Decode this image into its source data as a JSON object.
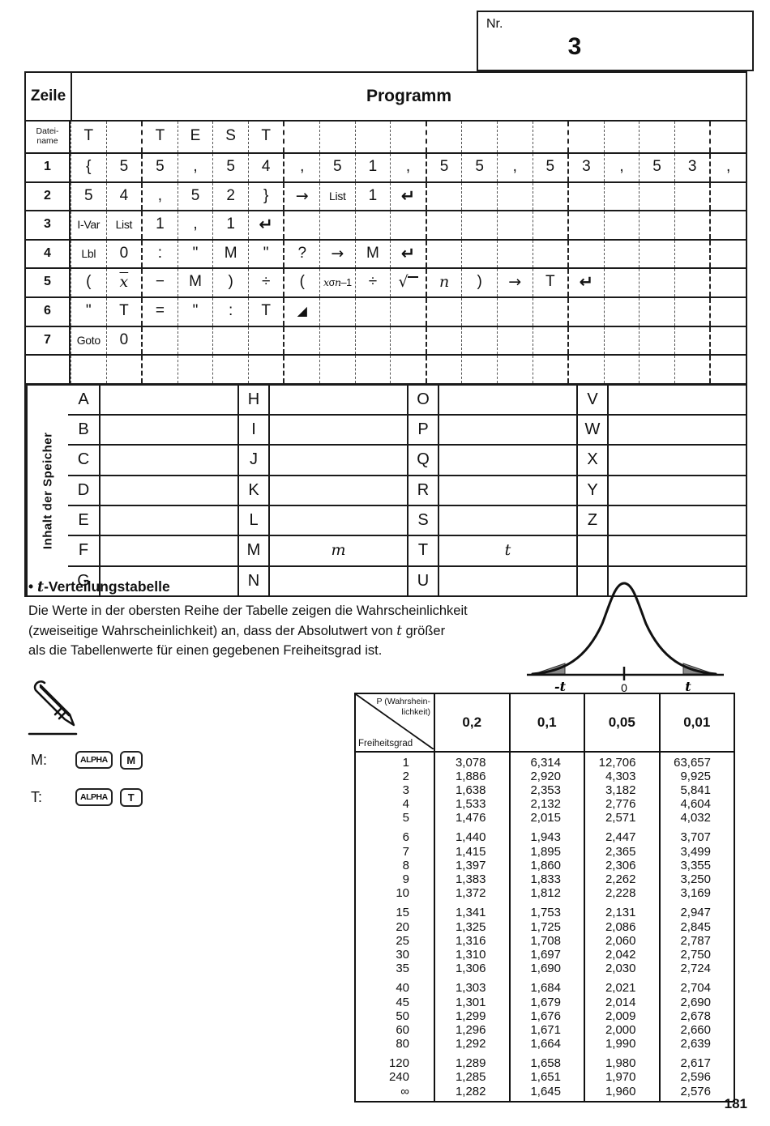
{
  "nr_box": {
    "label": "Nr.",
    "value": "3"
  },
  "program_table": {
    "zeile_header": "Zeile",
    "programm_header": "Programm",
    "dateiname_label_line1": "Datei-",
    "dateiname_label_line2": "name",
    "dateiname_cells": [
      "T",
      "",
      "T",
      "E",
      "S",
      "T",
      "",
      "",
      "",
      "",
      "",
      "",
      "",
      "",
      "",
      "",
      "",
      "",
      ""
    ],
    "rows": [
      {
        "num": "1",
        "cells": [
          "{",
          "5",
          "5",
          ",",
          "5",
          "4",
          ",",
          "5",
          "1",
          ",",
          "5",
          "5",
          ",",
          "5",
          "3",
          ",",
          "5",
          "3",
          ","
        ]
      },
      {
        "num": "2",
        "cells": [
          "5",
          "4",
          ",",
          "5",
          "2",
          "}",
          "{ARROW}",
          "List",
          "1",
          "{RET}",
          "",
          "",
          "",
          "",
          "",
          "",
          "",
          "",
          ""
        ]
      },
      {
        "num": "3",
        "cells": [
          "I-Var",
          "List",
          "1",
          ",",
          "1",
          "{RET}",
          "",
          "",
          "",
          "",
          "",
          "",
          "",
          "",
          "",
          "",
          "",
          "",
          ""
        ]
      },
      {
        "num": "4",
        "cells": [
          "Lbl",
          "0",
          ":",
          "\"",
          "M",
          "\"",
          "?",
          "{ARROW}",
          "M",
          "{RET}",
          "",
          "",
          "",
          "",
          "",
          "",
          "",
          "",
          ""
        ]
      },
      {
        "num": "5",
        "cells": [
          "(",
          "{XBAR}",
          "−",
          "M",
          ")",
          "÷",
          "(",
          "{XSN1}",
          "÷",
          "{SQRT}",
          "{N}",
          ")",
          "{ARROW}",
          "T",
          "{RET}",
          "",
          "",
          "",
          ""
        ]
      },
      {
        "num": "6",
        "cells": [
          "\"",
          "T",
          "=",
          "\"",
          ":",
          "T",
          "{DISP}",
          "",
          "",
          "",
          "",
          "",
          "",
          "",
          "",
          "",
          "",
          "",
          ""
        ]
      },
      {
        "num": "7",
        "cells": [
          "Goto",
          "0",
          "",
          "",
          "",
          "",
          "",
          "",
          "",
          "",
          "",
          "",
          "",
          "",
          "",
          "",
          "",
          "",
          ""
        ]
      },
      {
        "num": "",
        "cells": [
          "",
          "",
          "",
          "",
          "",
          "",
          "",
          "",
          "",
          "",
          "",
          "",
          "",
          "",
          "",
          "",
          "",
          "",
          ""
        ]
      }
    ]
  },
  "memory_table": {
    "side_label": "Inhalt der Speicher",
    "groups": [
      {
        "rows": [
          [
            "A",
            ""
          ],
          [
            "B",
            ""
          ],
          [
            "C",
            ""
          ],
          [
            "D",
            ""
          ],
          [
            "E",
            ""
          ],
          [
            "F",
            ""
          ],
          [
            "G",
            ""
          ]
        ]
      },
      {
        "rows": [
          [
            "H",
            ""
          ],
          [
            "I",
            ""
          ],
          [
            "J",
            ""
          ],
          [
            "K",
            ""
          ],
          [
            "L",
            ""
          ],
          [
            "M",
            "{MI}"
          ],
          [
            "N",
            ""
          ]
        ]
      },
      {
        "rows": [
          [
            "O",
            ""
          ],
          [
            "P",
            ""
          ],
          [
            "Q",
            ""
          ],
          [
            "R",
            ""
          ],
          [
            "S",
            ""
          ],
          [
            "T",
            "{TI}"
          ],
          [
            "U",
            ""
          ]
        ]
      },
      {
        "rows": [
          [
            "V",
            ""
          ],
          [
            "W",
            ""
          ],
          [
            "X",
            ""
          ],
          [
            "Y",
            ""
          ],
          [
            "Z",
            ""
          ],
          [
            "",
            ""
          ],
          [
            "",
            ""
          ]
        ]
      }
    ]
  },
  "t_section": {
    "bullet": "•",
    "title_t": "t",
    "title_rest": "-Verteilungstabelle",
    "paragraph_lines": [
      "Die Werte in der obersten Reihe der Tabelle zeigen die Wahrscheinlichkeit",
      "(zweiseitige Wahrscheinlichkeit) an, dass der Absolutwert von {t} größer",
      "als die Tabellenwerte für einen gegebenen Freiheitsgrad ist."
    ],
    "curve_labels": {
      "neg": "-t",
      "zero": "0",
      "pos": "t"
    }
  },
  "key_assignments": [
    {
      "label": "M:",
      "keys": [
        "ALPHA",
        "M"
      ]
    },
    {
      "label": "T:",
      "keys": [
        "ALPHA",
        "T"
      ]
    }
  ],
  "dist_table": {
    "header": {
      "diag_line1": "P (Wahrshein-",
      "diag_line2": "lichkeit)",
      "diag_bottom": "Freiheitsgrad",
      "columns": [
        "0,2",
        "0,1",
        "0,05",
        "0,01"
      ]
    },
    "groups": [
      [
        [
          "1",
          "3,078",
          "6,314",
          "12,706",
          "63,657"
        ],
        [
          "2",
          "1,886",
          "2,920",
          "4,303",
          "9,925"
        ],
        [
          "3",
          "1,638",
          "2,353",
          "3,182",
          "5,841"
        ],
        [
          "4",
          "1,533",
          "2,132",
          "2,776",
          "4,604"
        ],
        [
          "5",
          "1,476",
          "2,015",
          "2,571",
          "4,032"
        ]
      ],
      [
        [
          "6",
          "1,440",
          "1,943",
          "2,447",
          "3,707"
        ],
        [
          "7",
          "1,415",
          "1,895",
          "2,365",
          "3,499"
        ],
        [
          "8",
          "1,397",
          "1,860",
          "2,306",
          "3,355"
        ],
        [
          "9",
          "1,383",
          "1,833",
          "2,262",
          "3,250"
        ],
        [
          "10",
          "1,372",
          "1,812",
          "2,228",
          "3,169"
        ]
      ],
      [
        [
          "15",
          "1,341",
          "1,753",
          "2,131",
          "2,947"
        ],
        [
          "20",
          "1,325",
          "1,725",
          "2,086",
          "2,845"
        ],
        [
          "25",
          "1,316",
          "1,708",
          "2,060",
          "2,787"
        ],
        [
          "30",
          "1,310",
          "1,697",
          "2,042",
          "2,750"
        ],
        [
          "35",
          "1,306",
          "1,690",
          "2,030",
          "2,724"
        ]
      ],
      [
        [
          "40",
          "1,303",
          "1,684",
          "2,021",
          "2,704"
        ],
        [
          "45",
          "1,301",
          "1,679",
          "2,014",
          "2,690"
        ],
        [
          "50",
          "1,299",
          "1,676",
          "2,009",
          "2,678"
        ],
        [
          "60",
          "1,296",
          "1,671",
          "2,000",
          "2,660"
        ],
        [
          "80",
          "1,292",
          "1,664",
          "1,990",
          "2,639"
        ]
      ],
      [
        [
          "120",
          "1,289",
          "1,658",
          "1,980",
          "2,617"
        ],
        [
          "240",
          "1,285",
          "1,651",
          "1,970",
          "2,596"
        ],
        [
          "∞",
          "1,282",
          "1,645",
          "1,960",
          "2,576"
        ]
      ]
    ]
  },
  "page_number": "181"
}
